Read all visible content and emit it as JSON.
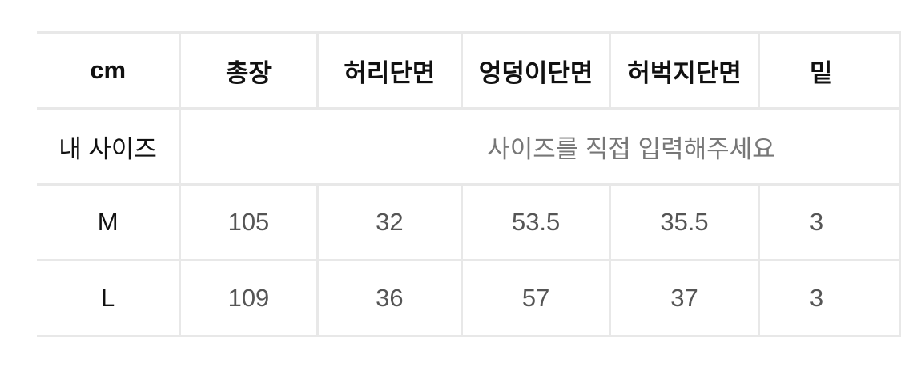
{
  "table": {
    "headers": [
      "cm",
      "총장",
      "허리단면",
      "엉덩이단면",
      "허벅지단면",
      "밑"
    ],
    "my_size": {
      "label": "내 사이즈",
      "placeholder": "사이즈를 직접 입력해주세요"
    },
    "rows": [
      {
        "size": "M",
        "values": [
          "105",
          "32",
          "53.5",
          "35.5",
          "3"
        ]
      },
      {
        "size": "L",
        "values": [
          "109",
          "36",
          "57",
          "37",
          "3"
        ]
      }
    ]
  },
  "colors": {
    "border": "#e8e8e8",
    "value_text": "#555555",
    "header_text": "#111111"
  }
}
